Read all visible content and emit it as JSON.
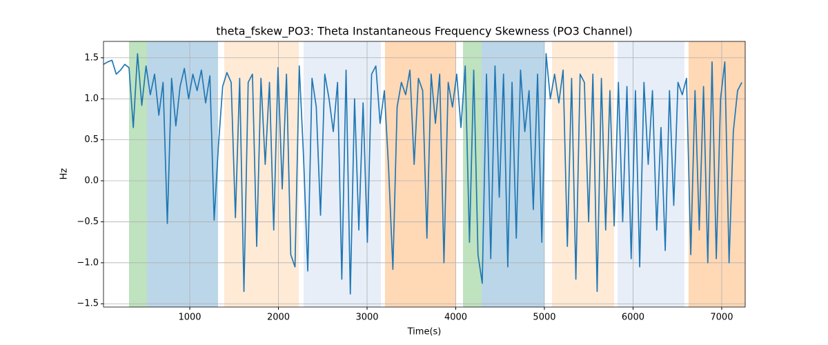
{
  "chart_data": {
    "type": "line",
    "title": "theta_fskew_PO3: Theta Instantaneous Frequency Skewness (PO3 Channel)",
    "x_label": "Time(s)",
    "y_label": "Hz",
    "xlim": [
      27,
      7265
    ],
    "ylim": [
      -1.54,
      1.7
    ],
    "xticks": [
      1000,
      2000,
      3000,
      4000,
      5000,
      6000,
      7000
    ],
    "yticks": [
      {
        "value": -1.5,
        "label": "−1.5"
      },
      {
        "value": -1.0,
        "label": "−1.0"
      },
      {
        "value": -0.5,
        "label": "−0.5"
      },
      {
        "value": 0,
        "label": "0.0"
      },
      0.5,
      {
        "value": 1.0,
        "label": "1.0"
      },
      1.5
    ],
    "grid": true,
    "spans": [
      {
        "start": 315,
        "end": 518,
        "color": "#2ca02c"
      },
      {
        "start": 518,
        "end": 1319,
        "color": "#1f77b4"
      },
      {
        "start": 1389,
        "end": 2230,
        "color": "#ffbb78"
      },
      {
        "start": 2284,
        "end": 3156,
        "color": "#aec7e8"
      },
      {
        "start": 3202,
        "end": 4004,
        "color": "#ff7f0e"
      },
      {
        "start": 4082,
        "end": 4292,
        "color": "#2ca02c"
      },
      {
        "start": 4292,
        "end": 5000,
        "color": "#1f77b4"
      },
      {
        "start": 5086,
        "end": 5786,
        "color": "#ffbb78"
      },
      {
        "start": 5825,
        "end": 6580,
        "color": "#aec7e8"
      },
      {
        "start": 6626,
        "end": 7265,
        "color": "#ff7f0e"
      }
    ],
    "x": [
      27,
      75,
      123,
      171,
      219,
      267,
      315,
      363,
      411,
      459,
      507,
      555,
      603,
      651,
      699,
      747,
      795,
      843,
      891,
      939,
      987,
      1035,
      1083,
      1131,
      1179,
      1227,
      1275,
      1323,
      1371,
      1419,
      1467,
      1515,
      1563,
      1611,
      1659,
      1707,
      1755,
      1803,
      1851,
      1899,
      1947,
      1995,
      2043,
      2091,
      2139,
      2187,
      2235,
      2283,
      2331,
      2379,
      2427,
      2475,
      2523,
      2571,
      2619,
      2667,
      2715,
      2763,
      2811,
      2859,
      2907,
      2955,
      3003,
      3051,
      3099,
      3147,
      3195,
      3243,
      3291,
      3339,
      3387,
      3435,
      3483,
      3531,
      3579,
      3627,
      3675,
      3723,
      3771,
      3819,
      3867,
      3915,
      3963,
      4011,
      4059,
      4107,
      4155,
      4203,
      4251,
      4299,
      4347,
      4395,
      4443,
      4491,
      4539,
      4587,
      4635,
      4683,
      4731,
      4779,
      4827,
      4875,
      4923,
      4971,
      5019,
      5067,
      5115,
      5163,
      5211,
      5259,
      5307,
      5355,
      5403,
      5451,
      5499,
      5547,
      5595,
      5643,
      5691,
      5739,
      5787,
      5835,
      5883,
      5931,
      5979,
      6027,
      6075,
      6123,
      6171,
      6219,
      6267,
      6315,
      6363,
      6411,
      6459,
      6507,
      6555,
      6603,
      6651,
      6699,
      6747,
      6795,
      6843,
      6891,
      6939,
      6987,
      7035,
      7083,
      7131,
      7179,
      7227
    ],
    "series": [
      {
        "color": "#1f77b4",
        "values": [
          1.42,
          1.45,
          1.47,
          1.3,
          1.35,
          1.42,
          1.38,
          0.65,
          1.55,
          0.92,
          1.4,
          1.05,
          1.3,
          0.8,
          1.2,
          -0.52,
          1.25,
          0.67,
          1.15,
          1.37,
          1.0,
          1.3,
          1.1,
          1.35,
          0.95,
          1.28,
          -0.48,
          0.42,
          1.15,
          1.32,
          1.2,
          -0.45,
          1.25,
          -1.35,
          1.2,
          1.3,
          -0.8,
          1.25,
          0.2,
          1.2,
          -0.6,
          1.38,
          -0.1,
          1.3,
          -0.9,
          -1.05,
          1.4,
          0.3,
          -1.1,
          1.25,
          0.9,
          -0.42,
          1.3,
          1.0,
          0.6,
          1.2,
          -1.2,
          1.35,
          -1.38,
          1.0,
          -0.6,
          0.95,
          -0.75,
          1.3,
          1.4,
          0.7,
          1.1,
          0.15,
          -1.08,
          0.9,
          1.2,
          1.05,
          1.35,
          0.2,
          1.25,
          1.1,
          -0.7,
          1.3,
          0.7,
          1.3,
          -1.0,
          1.2,
          0.9,
          1.3,
          0.65,
          1.4,
          -0.75,
          1.35,
          -0.9,
          -1.25,
          1.3,
          -0.95,
          1.4,
          -0.2,
          1.3,
          -1.05,
          1.2,
          -0.7,
          1.35,
          0.6,
          1.1,
          -0.35,
          1.3,
          -0.75,
          1.55,
          1.0,
          1.3,
          0.95,
          1.35,
          -0.8,
          1.25,
          -1.2,
          1.3,
          1.2,
          -0.5,
          1.3,
          -1.35,
          1.25,
          -0.6,
          1.1,
          -0.55,
          1.2,
          -0.5,
          1.15,
          -0.95,
          1.1,
          -1.05,
          1.2,
          0.2,
          1.1,
          -0.6,
          0.65,
          -0.85,
          1.1,
          -0.3,
          1.2,
          1.05,
          1.25,
          -0.9,
          1.1,
          -0.6,
          1.15,
          -1.0,
          1.45,
          -0.95,
          1.0,
          1.45,
          -1.0,
          0.6,
          1.1,
          1.2
        ]
      }
    ]
  }
}
